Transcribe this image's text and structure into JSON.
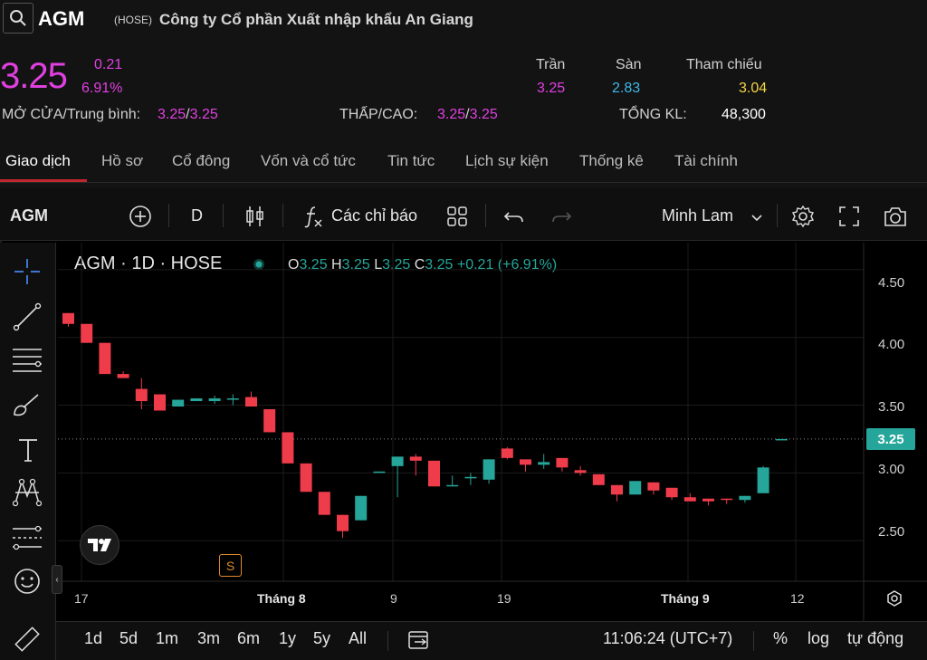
{
  "header": {
    "ticker": "AGM",
    "exchange": "(HOSE)",
    "company": "Công ty Cổ phần Xuất nhập khẩu An Giang"
  },
  "quote": {
    "price": "3.25",
    "change": "0.21",
    "change_pct": "6.91%",
    "ceiling_label": "Trần",
    "ceiling": "3.25",
    "floor_label": "Sàn",
    "floor": "2.83",
    "ref_label": "Tham chiếu",
    "ref": "3.04",
    "open_avg_label": "MỞ CỬA/Trung bình:",
    "open": "3.25",
    "avg": "3.25",
    "lowhigh_label": "THẤP/CAO:",
    "low": "3.25",
    "high": "3.25",
    "volume_label": "TỔNG KL:",
    "volume": "48,300",
    "slash": "/"
  },
  "tabs": [
    "Giao dịch",
    "Hồ sơ",
    "Cổ đông",
    "Vốn và cổ tức",
    "Tin tức",
    "Lịch sự kiện",
    "Thống kê",
    "Tài chính"
  ],
  "toolbar": {
    "symbol": "AGM",
    "interval": "D",
    "indicators": "Các chỉ báo",
    "theme": "Minh Lam"
  },
  "legend": {
    "title": "AGM · 1D · HOSE",
    "o_label": "O",
    "o": "3.25",
    "h_label": "H",
    "h": "3.25",
    "l_label": "L",
    "l": "3.25",
    "c_label": "C",
    "c": "3.25",
    "change": "+0.21 (+6.91%)"
  },
  "chart_data": {
    "type": "candlestick",
    "x_ticks": [
      "17",
      "Tháng 8",
      "9",
      "19",
      "Tháng 9",
      "12"
    ],
    "y_ticks": [
      "4.50",
      "4.00",
      "3.50",
      "3.00",
      "2.50"
    ],
    "y_range": [
      2.2,
      4.7
    ],
    "last_price": "3.25",
    "candles": [
      {
        "o": 4.18,
        "h": 4.18,
        "c": 4.1,
        "l": 4.08
      },
      {
        "o": 4.1,
        "h": 4.1,
        "c": 3.96,
        "l": 3.96
      },
      {
        "o": 3.96,
        "h": 3.96,
        "c": 3.73,
        "l": 3.73
      },
      {
        "o": 3.73,
        "h": 3.75,
        "c": 3.7,
        "l": 3.7
      },
      {
        "o": 3.62,
        "h": 3.7,
        "c": 3.53,
        "l": 3.47
      },
      {
        "o": 3.58,
        "h": 3.58,
        "c": 3.46,
        "l": 3.46
      },
      {
        "o": 3.49,
        "h": 3.54,
        "c": 3.54,
        "l": 3.49
      },
      {
        "o": 3.53,
        "h": 3.55,
        "c": 3.55,
        "l": 3.53
      },
      {
        "o": 3.53,
        "h": 3.57,
        "c": 3.55,
        "l": 3.51
      },
      {
        "o": 3.54,
        "h": 3.58,
        "c": 3.55,
        "l": 3.5
      },
      {
        "o": 3.56,
        "h": 3.6,
        "c": 3.49,
        "l": 3.49
      },
      {
        "o": 3.47,
        "h": 3.47,
        "c": 3.3,
        "l": 3.3
      },
      {
        "o": 3.3,
        "h": 3.3,
        "c": 3.07,
        "l": 3.07
      },
      {
        "o": 3.07,
        "h": 3.07,
        "c": 2.86,
        "l": 2.86
      },
      {
        "o": 2.86,
        "h": 2.86,
        "c": 2.69,
        "l": 2.69
      },
      {
        "o": 2.69,
        "h": 2.69,
        "c": 2.57,
        "l": 2.52
      },
      {
        "o": 2.65,
        "h": 2.83,
        "c": 2.83,
        "l": 2.65
      },
      {
        "o": 3.0,
        "h": 3.01,
        "c": 3.01,
        "l": 3.0
      },
      {
        "o": 3.05,
        "h": 3.12,
        "c": 3.12,
        "l": 2.82
      },
      {
        "o": 3.12,
        "h": 3.14,
        "c": 3.09,
        "l": 2.98
      },
      {
        "o": 3.09,
        "h": 3.09,
        "c": 2.9,
        "l": 2.9
      },
      {
        "o": 2.9,
        "h": 2.98,
        "c": 2.91,
        "l": 2.9
      },
      {
        "o": 2.96,
        "h": 3.0,
        "c": 2.97,
        "l": 2.91
      },
      {
        "o": 2.95,
        "h": 3.1,
        "c": 3.1,
        "l": 2.92
      },
      {
        "o": 3.18,
        "h": 3.19,
        "c": 3.11,
        "l": 3.1
      },
      {
        "o": 3.1,
        "h": 3.1,
        "c": 3.06,
        "l": 3.01
      },
      {
        "o": 3.06,
        "h": 3.14,
        "c": 3.08,
        "l": 3.03
      },
      {
        "o": 3.11,
        "h": 3.11,
        "c": 3.04,
        "l": 3.01
      },
      {
        "o": 3.02,
        "h": 3.05,
        "c": 3.0,
        "l": 2.98
      },
      {
        "o": 2.99,
        "h": 2.99,
        "c": 2.91,
        "l": 2.91
      },
      {
        "o": 2.91,
        "h": 2.91,
        "c": 2.84,
        "l": 2.79
      },
      {
        "o": 2.84,
        "h": 2.94,
        "c": 2.94,
        "l": 2.84
      },
      {
        "o": 2.93,
        "h": 2.93,
        "c": 2.87,
        "l": 2.84
      },
      {
        "o": 2.89,
        "h": 2.89,
        "c": 2.82,
        "l": 2.8
      },
      {
        "o": 2.82,
        "h": 2.85,
        "c": 2.79,
        "l": 2.79
      },
      {
        "o": 2.81,
        "h": 2.81,
        "c": 2.79,
        "l": 2.76
      },
      {
        "o": 2.81,
        "h": 2.81,
        "c": 2.8,
        "l": 2.77
      },
      {
        "o": 2.8,
        "h": 2.83,
        "c": 2.83,
        "l": 2.78
      },
      {
        "o": 2.85,
        "h": 3.05,
        "c": 3.04,
        "l": 2.85
      },
      {
        "o": 3.25,
        "h": 3.25,
        "c": 3.25,
        "l": 3.25
      }
    ]
  },
  "bottom": {
    "ranges": [
      "1d",
      "5d",
      "1m",
      "3m",
      "6m",
      "1y",
      "5y",
      "All"
    ],
    "time": "11:06:24 (UTC+7)",
    "percent": "%",
    "log": "log",
    "auto": "tự động"
  },
  "marks": {
    "split": "S"
  },
  "colors": {
    "up": "#26a69a",
    "down": "#ef3c4b",
    "ceiling": "#e040e0",
    "floor": "#3fb8e8",
    "ref": "#f5d547"
  }
}
